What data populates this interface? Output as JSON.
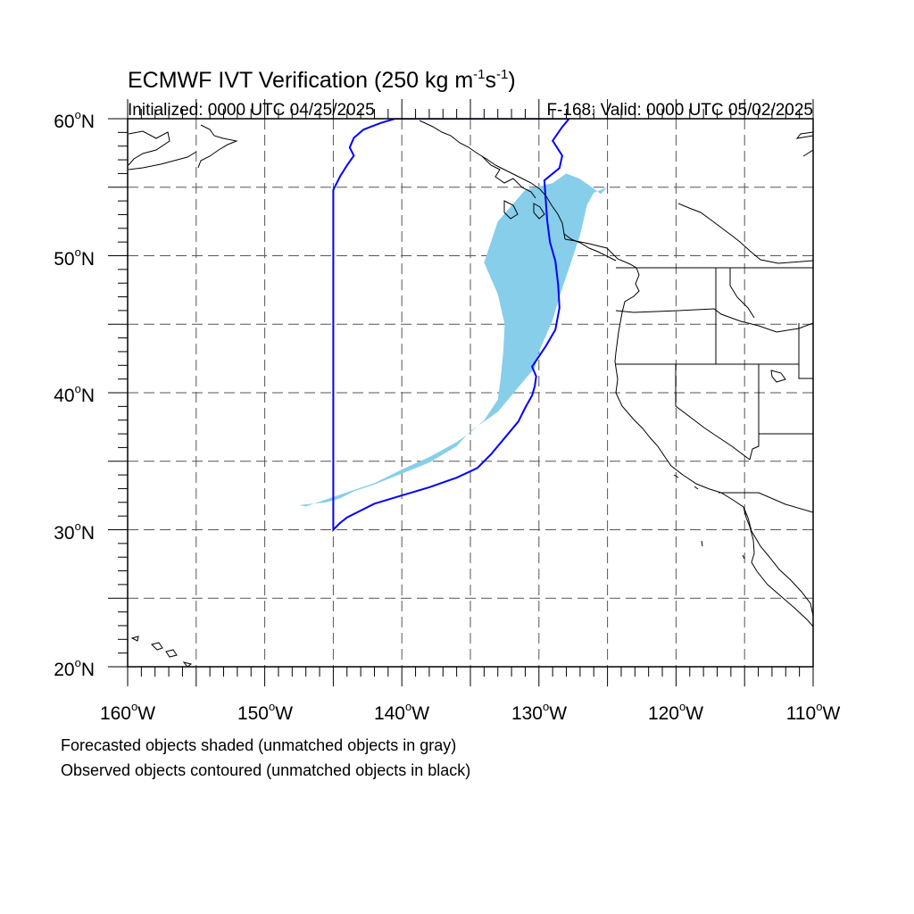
{
  "title": {
    "main": "ECMWF IVT Verification (250 kg m",
    "unit_exp1": "-1",
    "unit_mid": "s",
    "unit_exp2": "-1",
    "unit_close": ")"
  },
  "subtitle_left": "Initialized: 0000 UTC 04/25/2025",
  "subtitle_right": "F-168: Valid: 0000 UTC 05/02/2025",
  "lat_labels": [
    {
      "deg": "60",
      "hemi": "N"
    },
    {
      "deg": "50",
      "hemi": "N"
    },
    {
      "deg": "40",
      "hemi": "N"
    },
    {
      "deg": "30",
      "hemi": "N"
    },
    {
      "deg": "20",
      "hemi": "N"
    }
  ],
  "lon_labels": [
    {
      "deg": "160",
      "hemi": "W"
    },
    {
      "deg": "150",
      "hemi": "W"
    },
    {
      "deg": "140",
      "hemi": "W"
    },
    {
      "deg": "130",
      "hemi": "W"
    },
    {
      "deg": "120",
      "hemi": "W"
    },
    {
      "deg": "110",
      "hemi": "W"
    }
  ],
  "notes": {
    "line1": "Forecasted objects shaded (unmatched objects in gray)",
    "line2": "Observed objects contoured (unmatched objects in black)"
  },
  "colors": {
    "forecast_fill": "#87ceeb",
    "observed_contour": "#0000ff",
    "coastline": "#000000",
    "grid": "#555555"
  },
  "chart_data": {
    "type": "map",
    "extent": {
      "lon": [
        -160,
        -110
      ],
      "lat": [
        20,
        60
      ]
    },
    "grid_spacing_deg": 5,
    "forecast_object": {
      "lon": [
        -147,
        -145,
        -142,
        -140,
        -138,
        -136,
        -135,
        -134,
        -133,
        -132.8,
        -132.6,
        -132.5,
        -133,
        -134,
        -133,
        -131,
        -129,
        -128,
        -127,
        -126,
        -125.5,
        -125,
        -126,
        -126.5,
        -127,
        -127.5,
        -128,
        -128.5,
        -129,
        -130,
        -130.3,
        -131,
        -132,
        -133,
        -134,
        -135,
        -136,
        -138,
        -140,
        -142,
        -143.5,
        -144.5,
        -145.5,
        -147.5
      ],
      "lat": [
        31.7,
        32.4,
        33.4,
        34.4,
        35.3,
        36.4,
        37.1,
        38.0,
        39.5,
        41.0,
        43.0,
        45.0,
        47.2,
        49.5,
        52.5,
        54.8,
        55.3,
        56.0,
        55.6,
        54.9,
        54.5,
        55.0,
        54.6,
        53.7,
        51.5,
        50.0,
        48.5,
        47.0,
        45.3,
        43.0,
        41.8,
        41.0,
        39.8,
        38.6,
        37.9,
        37.2,
        36.1,
        34.9,
        34.1,
        33.3,
        32.8,
        32.3,
        32.0,
        31.8
      ]
    },
    "observed_object": {
      "lon": [
        -145.0,
        -144.5,
        -144.0,
        -143.0,
        -142.0,
        -140.0,
        -138.0,
        -136.0,
        -134.5,
        -133.5,
        -132.5,
        -131.5,
        -131.0,
        -130.5,
        -130.3,
        -130.2,
        -130.5,
        -129.5,
        -128.8,
        -128.5,
        -128.6,
        -128.8,
        -129.2,
        -129.4,
        -129.5,
        -129.6,
        -128.5,
        -128.3,
        -129.0,
        -128.3,
        -127.8,
        -128.3,
        -129.5,
        -131.0,
        -133.0,
        -135.0,
        -137.0,
        -138.5,
        -139.5,
        -140.5,
        -141.5,
        -142.3,
        -142.8,
        -143.5,
        -143.8,
        -143.5,
        -144.0,
        -144.5,
        -145.0,
        -145.0
      ],
      "lat": [
        30.0,
        30.5,
        30.9,
        31.4,
        31.9,
        32.5,
        33.1,
        33.8,
        34.5,
        35.5,
        36.7,
        37.9,
        38.9,
        39.8,
        40.5,
        41.2,
        41.9,
        43.4,
        44.6,
        46.2,
        47.9,
        49.6,
        51.0,
        52.6,
        54.0,
        55.5,
        56.4,
        57.3,
        58.4,
        59.4,
        60.0,
        60.0,
        60.0,
        60.0,
        60.0,
        60.0,
        60.0,
        60.0,
        60.0,
        60.0,
        59.7,
        59.4,
        59.2,
        58.6,
        57.9,
        57.3,
        56.6,
        55.8,
        54.8,
        30.0
      ]
    }
  }
}
